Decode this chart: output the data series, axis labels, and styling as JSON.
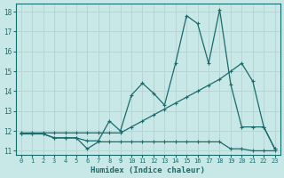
{
  "xlabel": "Humidex (Indice chaleur)",
  "ylabel": "",
  "bg_color": "#c8e8e8",
  "grid_color": "#b8d4d4",
  "line_color": "#1a6b6b",
  "xlim": [
    -0.5,
    23.5
  ],
  "ylim": [
    10.8,
    18.4
  ],
  "xticks": [
    0,
    1,
    2,
    3,
    4,
    5,
    6,
    7,
    8,
    9,
    10,
    11,
    12,
    13,
    14,
    15,
    16,
    17,
    18,
    19,
    20,
    21,
    22,
    23
  ],
  "yticks": [
    11,
    12,
    13,
    14,
    15,
    16,
    17,
    18
  ],
  "line1_x": [
    0,
    1,
    2,
    3,
    4,
    5,
    6,
    7,
    8,
    9,
    10,
    11,
    12,
    13,
    14,
    15,
    16,
    17,
    18,
    19,
    20,
    21,
    22,
    23
  ],
  "line1_y": [
    11.85,
    11.85,
    11.85,
    11.65,
    11.65,
    11.65,
    11.1,
    11.45,
    11.45,
    11.45,
    11.45,
    11.45,
    11.45,
    11.45,
    11.45,
    11.45,
    11.45,
    11.45,
    11.45,
    11.1,
    11.1,
    11.0,
    11.0,
    11.0
  ],
  "line2_x": [
    0,
    1,
    2,
    3,
    4,
    5,
    6,
    7,
    8,
    9,
    10,
    11,
    12,
    13,
    14,
    15,
    16,
    17,
    18,
    19,
    20,
    21,
    22,
    23
  ],
  "line2_y": [
    11.9,
    11.9,
    11.9,
    11.9,
    11.9,
    11.9,
    11.9,
    11.9,
    11.9,
    11.9,
    12.2,
    12.5,
    12.8,
    13.1,
    13.4,
    13.7,
    14.0,
    14.3,
    14.6,
    15.0,
    15.4,
    14.5,
    12.2,
    11.1
  ],
  "line3_x": [
    0,
    1,
    2,
    3,
    4,
    5,
    6,
    7,
    8,
    9,
    10,
    11,
    12,
    13,
    14,
    15,
    16,
    17,
    18,
    19,
    20,
    21,
    22,
    23
  ],
  "line3_y": [
    11.85,
    11.85,
    11.85,
    11.65,
    11.65,
    11.65,
    11.5,
    11.5,
    12.5,
    12.0,
    13.8,
    14.4,
    13.9,
    13.3,
    15.4,
    17.8,
    17.4,
    15.4,
    18.1,
    14.35,
    12.2,
    12.2,
    12.2,
    11.1
  ]
}
